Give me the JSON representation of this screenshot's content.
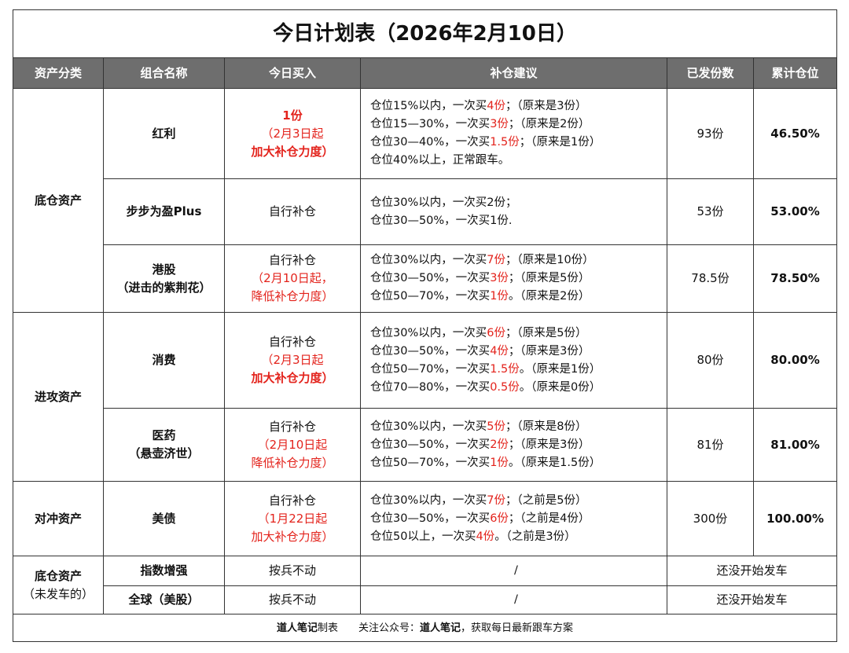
{
  "title": "今日计划表（2026年2月10日）",
  "headers": [
    "资产分类",
    "组合名称",
    "今日买入",
    "补仓建议",
    "已发份数",
    "累计仓位"
  ],
  "groups": [
    {
      "category": [
        "底仓资产"
      ],
      "rows": [
        {
          "name": [
            "红利"
          ],
          "buy": [
            [
              {
                "text": "1份",
                "color": "#e3231c",
                "bold": true
              }
            ],
            [
              {
                "text": "（2月3日起",
                "color": "#e3231c"
              }
            ],
            [
              {
                "text": "加大补仓力度）",
                "color": "#e3231c",
                "bold": true
              }
            ]
          ],
          "advice": [
            [
              "仓位15%以内，一次买",
              {
                "text": "4份",
                "color": "#e3231c"
              },
              "；（原来是3份）"
            ],
            [
              "仓位15—30%，一次买",
              {
                "text": "3份",
                "color": "#e3231c"
              },
              "；（原来是2份）"
            ],
            [
              "仓位30—40%，一次买",
              {
                "text": "1.5份",
                "color": "#e3231c"
              },
              "；（原来是1份）"
            ],
            "仓位40%以上，正常跟车。"
          ],
          "shares": "93份",
          "position": "46.50%"
        },
        {
          "name": [
            "步步为盈Plus"
          ],
          "buy": [
            "自行补仓"
          ],
          "advice": [
            "仓位30%以内，一次买2份；",
            "仓位30—50%，一次买1份."
          ],
          "shares": "53份",
          "position": "53.00%"
        },
        {
          "name": [
            "港股",
            "（进击的紫荆花）"
          ],
          "buy": [
            "自行补仓",
            [
              {
                "text": "（2月10日起，",
                "color": "#e3231c"
              }
            ],
            [
              {
                "text": "降低补仓力度）",
                "color": "#e3231c"
              }
            ]
          ],
          "advice": [
            [
              "仓位30%以内，一次买",
              {
                "text": "7份",
                "color": "#e3231c"
              },
              "；（原来是10份）"
            ],
            [
              "仓位30—50%，一次买",
              {
                "text": "3份",
                "color": "#e3231c"
              },
              "；（原来是5份）"
            ],
            [
              "仓位50—70%，一次买",
              {
                "text": "1份",
                "color": "#e3231c"
              },
              "。（原来是2份）"
            ]
          ],
          "shares": "78.5份",
          "position": "78.50%"
        }
      ]
    },
    {
      "category": [
        "进攻资产"
      ],
      "rows": [
        {
          "name": [
            "消费"
          ],
          "buy": [
            "自行补仓",
            [
              {
                "text": "（2月3日起",
                "color": "#e3231c"
              }
            ],
            [
              {
                "text": "加大补仓力度）",
                "color": "#e3231c",
                "bold": true
              }
            ]
          ],
          "advice": [
            [
              "仓位30%以内，一次买",
              {
                "text": "6份",
                "color": "#e3231c"
              },
              "；（原来是5份）"
            ],
            [
              "仓位30—50%，一次买",
              {
                "text": "4份",
                "color": "#e3231c"
              },
              "；（原来是3份）"
            ],
            [
              "仓位50—70%，一次买",
              {
                "text": "1.5份",
                "color": "#e3231c"
              },
              "。（原来是1份）"
            ],
            [
              "仓位70—80%，一次买",
              {
                "text": "0.5份",
                "color": "#e3231c"
              },
              "。（原来是0份）"
            ]
          ],
          "shares": "80份",
          "position": "80.00%"
        },
        {
          "name": [
            "医药",
            "（悬壶济世）"
          ],
          "buy": [
            "自行补仓",
            [
              {
                "text": "（2月10日起",
                "color": "#e3231c"
              }
            ],
            [
              {
                "text": "降低补仓力度）",
                "color": "#e3231c"
              }
            ]
          ],
          "advice": [
            [
              "仓位30%以内，一次买",
              {
                "text": "5份",
                "color": "#e3231c"
              },
              "；（原来是8份）"
            ],
            [
              "仓位30—50%，一次买",
              {
                "text": "2份",
                "color": "#e3231c"
              },
              "；（原来是3份）"
            ],
            [
              "仓位50—70%，一次买",
              {
                "text": "1份",
                "color": "#e3231c"
              },
              "。（原来是1.5份）"
            ]
          ],
          "shares": "81份",
          "position": "81.00%"
        }
      ]
    },
    {
      "category": [
        "对冲资产"
      ],
      "rows": [
        {
          "name": [
            "美债"
          ],
          "buy": [
            "自行补仓",
            [
              {
                "text": "（1月22日起",
                "color": "#e3231c"
              }
            ],
            [
              {
                "text": "加大补仓力度）",
                "color": "#e3231c"
              }
            ]
          ],
          "advice": [
            [
              "仓位30%以内，一次买",
              {
                "text": "7份",
                "color": "#e3231c"
              },
              "；（之前是5份）"
            ],
            [
              "仓位30—50%，一次买",
              {
                "text": "6份",
                "color": "#e3231c"
              },
              "；（之前是4份）"
            ],
            [
              "仓位50以上，一次买",
              {
                "text": "4份",
                "color": "#e3231c"
              },
              "。（之前是3份）"
            ]
          ],
          "shares": "300份",
          "position": "100.00%"
        }
      ]
    },
    {
      "category": [
        "底仓资产",
        [
          {
            "text": "（未发车的）",
            "bold": false
          }
        ]
      ],
      "rows": [
        {
          "name": [
            "指数增强"
          ],
          "buy": [
            "按兵不动"
          ],
          "advice": [
            "/"
          ],
          "status": "还没开始发车"
        },
        {
          "name": [
            "全球（美股）"
          ],
          "buy": [
            "按兵不动"
          ],
          "advice": [
            "/"
          ],
          "status": "还没开始发车"
        }
      ]
    }
  ],
  "footer": [
    {
      "text": "道人笔记",
      "bold": true
    },
    "制表　　关注公众号：",
    {
      "text": "道人笔记",
      "bold": true
    },
    "，获取每日最新跟车方案"
  ]
}
